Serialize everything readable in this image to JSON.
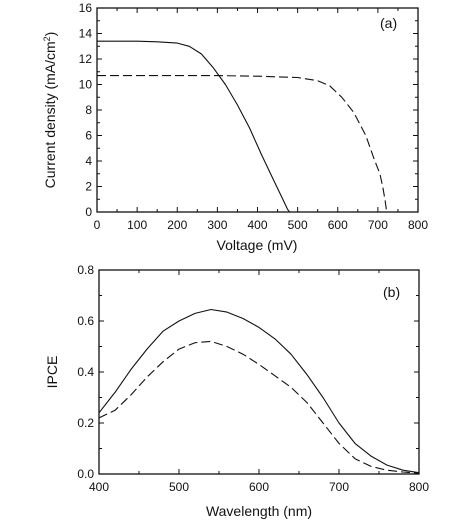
{
  "chart_data": [
    {
      "type": "line",
      "panel_label": "(a)",
      "xlabel": "Voltage (mV)",
      "ylabel": "Current density (mA/cm",
      "ylabel_sup": "2",
      "ylabel_end": ")",
      "xlim": [
        0,
        800
      ],
      "ylim": [
        0,
        16
      ],
      "xticks": [
        0,
        100,
        200,
        300,
        400,
        500,
        600,
        700,
        800
      ],
      "yticks": [
        0,
        2,
        4,
        6,
        8,
        10,
        12,
        14,
        16
      ],
      "grid": false,
      "series": [
        {
          "style": "solid",
          "x": [
            0,
            100,
            150,
            200,
            230,
            260,
            290,
            320,
            350,
            380,
            410,
            440,
            460,
            475,
            480
          ],
          "y": [
            13.4,
            13.4,
            13.35,
            13.25,
            13.0,
            12.4,
            11.3,
            10.0,
            8.4,
            6.6,
            4.5,
            2.5,
            1.2,
            0.2,
            0.0
          ]
        },
        {
          "style": "dashed",
          "x": [
            0,
            100,
            200,
            300,
            400,
            500,
            550,
            580,
            610,
            640,
            670,
            690,
            705,
            712,
            718,
            722
          ],
          "y": [
            10.7,
            10.7,
            10.7,
            10.7,
            10.65,
            10.55,
            10.3,
            9.9,
            9.0,
            7.8,
            6.0,
            4.2,
            3.0,
            2.0,
            0.9,
            0.0
          ]
        }
      ]
    },
    {
      "type": "line",
      "panel_label": "(b)",
      "xlabel": "Wavelength (nm)",
      "ylabel": "IPCE",
      "xlim": [
        400,
        800
      ],
      "ylim": [
        0.0,
        0.8
      ],
      "xticks": [
        400,
        500,
        600,
        700,
        800
      ],
      "yticks": [
        "0.0",
        "0.2",
        "0.4",
        "0.6",
        "0.8"
      ],
      "grid": false,
      "series": [
        {
          "style": "solid",
          "x": [
            400,
            420,
            440,
            460,
            480,
            500,
            520,
            540,
            560,
            580,
            600,
            620,
            640,
            660,
            680,
            700,
            720,
            740,
            760,
            780,
            800
          ],
          "y": [
            0.24,
            0.32,
            0.41,
            0.49,
            0.56,
            0.6,
            0.63,
            0.645,
            0.635,
            0.61,
            0.575,
            0.53,
            0.47,
            0.39,
            0.3,
            0.2,
            0.12,
            0.07,
            0.035,
            0.015,
            0.005
          ]
        },
        {
          "style": "dashed",
          "x": [
            400,
            420,
            440,
            460,
            480,
            500,
            520,
            540,
            560,
            580,
            600,
            620,
            640,
            660,
            680,
            700,
            720,
            740,
            760,
            780,
            800
          ],
          "y": [
            0.22,
            0.25,
            0.31,
            0.38,
            0.44,
            0.49,
            0.515,
            0.52,
            0.5,
            0.47,
            0.43,
            0.385,
            0.34,
            0.28,
            0.2,
            0.12,
            0.06,
            0.03,
            0.015,
            0.008,
            0.003
          ]
        }
      ]
    }
  ]
}
